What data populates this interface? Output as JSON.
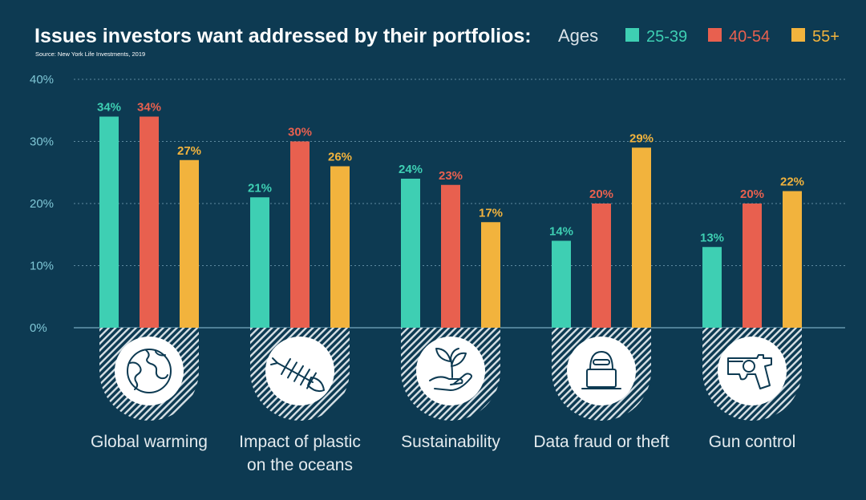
{
  "chart_data": {
    "type": "bar",
    "title": "Issues investors want addressed by their portfolios:",
    "source": "Source: New York Life Investments, 2019",
    "legend": {
      "title": "Ages",
      "placement": "top-right"
    },
    "ylim": [
      0,
      40
    ],
    "yticks": [
      {
        "value": 0,
        "label": "0%"
      },
      {
        "value": 10,
        "label": "10%"
      },
      {
        "value": 20,
        "label": "20%"
      },
      {
        "value": 30,
        "label": "30%"
      },
      {
        "value": 40,
        "label": "40%"
      }
    ],
    "grid": true,
    "categories": [
      {
        "lines": [
          "Global warming"
        ],
        "icon": "globe-icon"
      },
      {
        "lines": [
          "Impact of plastic",
          "on the oceans"
        ],
        "icon": "fish-skeleton-icon"
      },
      {
        "lines": [
          "Sustainability"
        ],
        "icon": "plant-in-hand-icon"
      },
      {
        "lines": [
          "Data fraud or theft"
        ],
        "icon": "hacker-laptop-icon"
      },
      {
        "lines": [
          "Gun control"
        ],
        "icon": "revolver-icon"
      }
    ],
    "series": [
      {
        "name": "25-39",
        "color": "#3ecfb3",
        "values": [
          34,
          21,
          24,
          14,
          13
        ],
        "labels": [
          "34%",
          "21%",
          "24%",
          "14%",
          "13%"
        ]
      },
      {
        "name": "40-54",
        "color": "#e8604f",
        "values": [
          34,
          30,
          23,
          20,
          20
        ],
        "labels": [
          "34%",
          "30%",
          "23%",
          "20%",
          "20%"
        ]
      },
      {
        "name": "55+",
        "color": "#f2b33d",
        "values": [
          27,
          26,
          17,
          29,
          22
        ],
        "labels": [
          "27%",
          "26%",
          "17%",
          "29%",
          "22%"
        ]
      }
    ]
  }
}
